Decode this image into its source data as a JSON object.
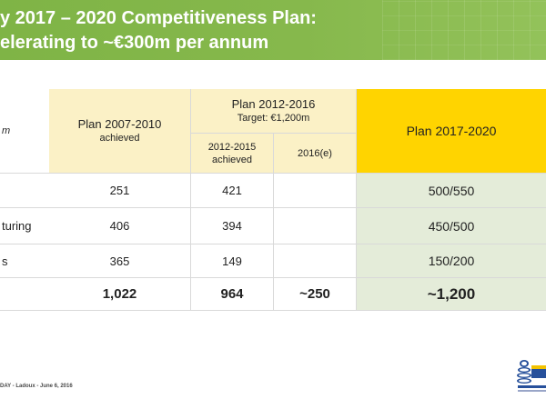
{
  "title": {
    "line1": "y 2017 – 2020 Competitiveness Plan:",
    "line2": "elerating to ~€300m per annum"
  },
  "table": {
    "unit_label": "m",
    "headers": {
      "plan_2007": "Plan 2007-2010",
      "plan_2007_sub": "achieved",
      "plan_2012": "Plan 2012-2016",
      "plan_2012_target": "Target: €1,200m",
      "sub_2012_2015": "2012-2015",
      "sub_2012_2015_b": "achieved",
      "sub_2016": "2016(e)",
      "plan_2017": "Plan 2017-2020"
    },
    "rows": [
      {
        "label": "",
        "p2007": "251",
        "p2015": "421",
        "p2016": "",
        "p2017": "500/550"
      },
      {
        "label": "turing",
        "p2007": "406",
        "p2015": "394",
        "p2016": "",
        "p2017": "450/500"
      },
      {
        "label": "s",
        "p2007": "365",
        "p2015": "149",
        "p2016": "",
        "p2017": "150/200"
      },
      {
        "label": "",
        "p2007": "1,022",
        "p2015": "964",
        "p2016": "~250",
        "p2017": "~1,200"
      }
    ]
  },
  "footer": {
    "text": "DAY -  Ladoux  -  June 6, 2016"
  },
  "colors": {
    "banner": "#86b84c",
    "header": "#fbf1c6",
    "highlight": "#ffd400",
    "highlight_body": "#e4ecd9"
  }
}
